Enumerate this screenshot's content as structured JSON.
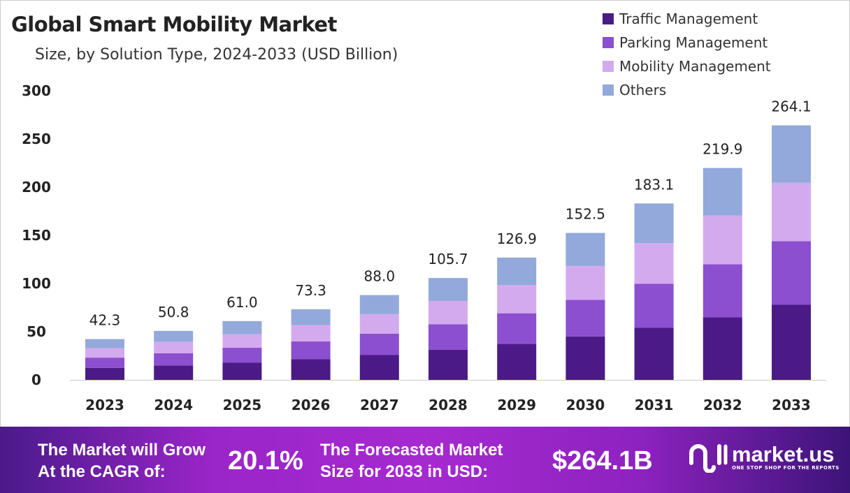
{
  "chart_data": {
    "type": "bar",
    "stacked": true,
    "title": "Global Smart Mobility Market",
    "subtitle": "Size, by Solution Type, 2024-2033 (USD Billion)",
    "xlabel": "",
    "ylabel": "",
    "ylim": [
      0,
      300
    ],
    "yticks": [
      0,
      50,
      100,
      150,
      200,
      250,
      300
    ],
    "grid": false,
    "legend_position": "top-right",
    "categories": [
      "2023",
      "2024",
      "2025",
      "2026",
      "2027",
      "2028",
      "2029",
      "2030",
      "2031",
      "2032",
      "2033"
    ],
    "totals": [
      "42.3",
      "50.8",
      "61.0",
      "73.3",
      "88.0",
      "105.7",
      "126.9",
      "152.5",
      "183.1",
      "219.9",
      "264.1"
    ],
    "series": [
      {
        "name": "Traffic Management",
        "color": "#4b1a87",
        "values": [
          12.5,
          15.0,
          18.0,
          21.6,
          26.0,
          31.2,
          37.4,
          45.0,
          54.0,
          64.9,
          77.9
        ]
      },
      {
        "name": "Parking Management",
        "color": "#8b4fcf",
        "values": [
          10.6,
          12.7,
          15.3,
          18.3,
          22.0,
          26.4,
          31.7,
          38.1,
          45.8,
          55.0,
          66.0
        ]
      },
      {
        "name": "Mobility Management",
        "color": "#d4aaee",
        "values": [
          9.7,
          11.7,
          14.0,
          16.9,
          20.2,
          24.3,
          29.2,
          35.1,
          42.1,
          50.6,
          60.7
        ]
      },
      {
        "name": "Others",
        "color": "#93a9db",
        "values": [
          9.5,
          11.4,
          13.7,
          16.5,
          19.8,
          23.8,
          28.6,
          34.3,
          41.2,
          49.4,
          59.5
        ]
      }
    ]
  },
  "footer": {
    "cagr_label_1": "The Market will Grow",
    "cagr_label_2": "At the CAGR of:",
    "cagr_value": "20.1%",
    "forecast_label_1": "The Forecasted Market",
    "forecast_label_2": "Size for 2033 in USD:",
    "forecast_value": "$264.1B",
    "logo_name": "market.us",
    "logo_tagline": "ONE STOP SHOP FOR THE REPORTS"
  }
}
